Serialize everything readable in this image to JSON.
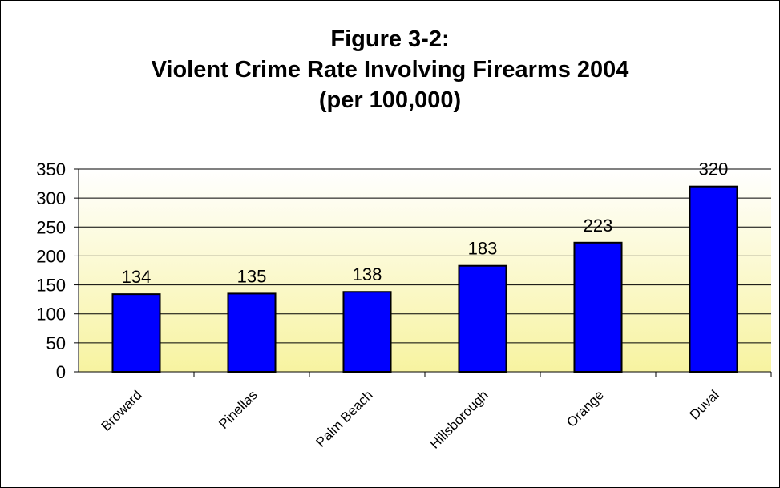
{
  "chart_data": {
    "type": "bar",
    "title_lines": [
      "Figure 3-2:",
      "Violent Crime Rate Involving Firearms 2004",
      "(per 100,000)"
    ],
    "categories": [
      "Broward",
      "Pinellas",
      "Palm Beach",
      "Hillsborough",
      "Orange",
      "Duval"
    ],
    "values": [
      134,
      135,
      138,
      183,
      223,
      320
    ],
    "data_labels": [
      "134",
      "135",
      "138",
      "183",
      "223",
      "320"
    ],
    "ylim": [
      0,
      350
    ],
    "yticks": [
      0,
      50,
      100,
      150,
      200,
      250,
      300,
      350
    ],
    "xlabel": "",
    "ylabel": "",
    "grid": true,
    "legend": "none",
    "colors": {
      "bar": "#0000ff",
      "bar_stroke": "#000000",
      "plot_bg_top": "#ffffff",
      "plot_bg_bottom": "#f7f3a0",
      "gridline": "#000000"
    }
  }
}
